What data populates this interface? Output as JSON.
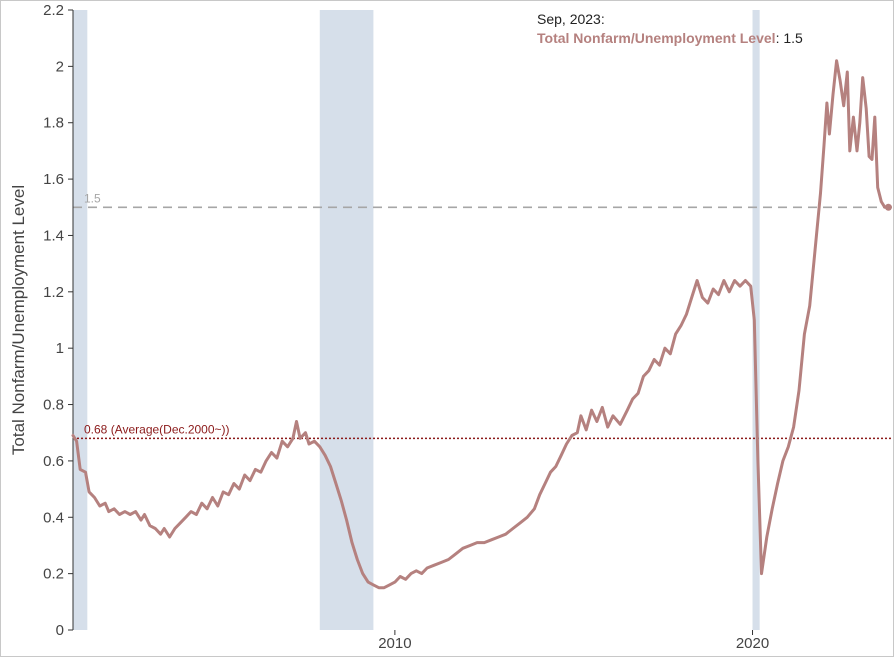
{
  "chart_data": {
    "type": "line",
    "ylabel": "Total Nonfarm/Unemployment Level",
    "xlim": [
      2001.0,
      2023.9
    ],
    "ylim": [
      0,
      2.2
    ],
    "y_ticks": [
      "0",
      "0.2",
      "0.4",
      "0.6",
      "0.8",
      "1",
      "1.2",
      "1.4",
      "1.6",
      "1.8",
      "2",
      "2.2"
    ],
    "x_ticks": [
      {
        "label": "2010",
        "value": 2010.0
      },
      {
        "label": "2020",
        "value": 2020.0
      }
    ],
    "recessions": [
      [
        2001.0,
        2001.4
      ],
      [
        2007.9,
        2009.4
      ],
      [
        2020.0,
        2020.2
      ]
    ],
    "series": [
      {
        "name": "Total Nonfarm/Unemployment Level",
        "color": "#b5817f",
        "points": [
          [
            2001.0,
            0.69
          ],
          [
            2001.1,
            0.67
          ],
          [
            2001.2,
            0.57
          ],
          [
            2001.35,
            0.56
          ],
          [
            2001.45,
            0.49
          ],
          [
            2001.6,
            0.47
          ],
          [
            2001.75,
            0.44
          ],
          [
            2001.9,
            0.45
          ],
          [
            2002.0,
            0.42
          ],
          [
            2002.15,
            0.43
          ],
          [
            2002.3,
            0.41
          ],
          [
            2002.45,
            0.42
          ],
          [
            2002.6,
            0.41
          ],
          [
            2002.75,
            0.42
          ],
          [
            2002.9,
            0.39
          ],
          [
            2003.0,
            0.41
          ],
          [
            2003.15,
            0.37
          ],
          [
            2003.3,
            0.36
          ],
          [
            2003.45,
            0.34
          ],
          [
            2003.55,
            0.36
          ],
          [
            2003.7,
            0.33
          ],
          [
            2003.85,
            0.36
          ],
          [
            2004.0,
            0.38
          ],
          [
            2004.15,
            0.4
          ],
          [
            2004.3,
            0.42
          ],
          [
            2004.45,
            0.41
          ],
          [
            2004.6,
            0.45
          ],
          [
            2004.75,
            0.43
          ],
          [
            2004.9,
            0.47
          ],
          [
            2005.05,
            0.44
          ],
          [
            2005.2,
            0.49
          ],
          [
            2005.35,
            0.48
          ],
          [
            2005.5,
            0.52
          ],
          [
            2005.65,
            0.5
          ],
          [
            2005.8,
            0.55
          ],
          [
            2005.95,
            0.53
          ],
          [
            2006.1,
            0.57
          ],
          [
            2006.25,
            0.56
          ],
          [
            2006.4,
            0.6
          ],
          [
            2006.55,
            0.63
          ],
          [
            2006.7,
            0.61
          ],
          [
            2006.85,
            0.67
          ],
          [
            2007.0,
            0.65
          ],
          [
            2007.15,
            0.68
          ],
          [
            2007.25,
            0.74
          ],
          [
            2007.35,
            0.68
          ],
          [
            2007.5,
            0.7
          ],
          [
            2007.6,
            0.66
          ],
          [
            2007.75,
            0.67
          ],
          [
            2007.9,
            0.65
          ],
          [
            2008.05,
            0.62
          ],
          [
            2008.2,
            0.58
          ],
          [
            2008.35,
            0.52
          ],
          [
            2008.5,
            0.46
          ],
          [
            2008.65,
            0.39
          ],
          [
            2008.8,
            0.31
          ],
          [
            2008.95,
            0.25
          ],
          [
            2009.1,
            0.2
          ],
          [
            2009.25,
            0.17
          ],
          [
            2009.4,
            0.16
          ],
          [
            2009.55,
            0.15
          ],
          [
            2009.7,
            0.15
          ],
          [
            2009.85,
            0.16
          ],
          [
            2010.0,
            0.17
          ],
          [
            2010.15,
            0.19
          ],
          [
            2010.3,
            0.18
          ],
          [
            2010.45,
            0.2
          ],
          [
            2010.6,
            0.21
          ],
          [
            2010.75,
            0.2
          ],
          [
            2010.9,
            0.22
          ],
          [
            2011.1,
            0.23
          ],
          [
            2011.3,
            0.24
          ],
          [
            2011.5,
            0.25
          ],
          [
            2011.7,
            0.27
          ],
          [
            2011.9,
            0.29
          ],
          [
            2012.1,
            0.3
          ],
          [
            2012.3,
            0.31
          ],
          [
            2012.5,
            0.31
          ],
          [
            2012.7,
            0.32
          ],
          [
            2012.9,
            0.33
          ],
          [
            2013.1,
            0.34
          ],
          [
            2013.3,
            0.36
          ],
          [
            2013.5,
            0.38
          ],
          [
            2013.7,
            0.4
          ],
          [
            2013.9,
            0.43
          ],
          [
            2014.05,
            0.48
          ],
          [
            2014.2,
            0.52
          ],
          [
            2014.35,
            0.56
          ],
          [
            2014.5,
            0.58
          ],
          [
            2014.65,
            0.62
          ],
          [
            2014.8,
            0.66
          ],
          [
            2014.95,
            0.69
          ],
          [
            2015.1,
            0.7
          ],
          [
            2015.2,
            0.76
          ],
          [
            2015.35,
            0.71
          ],
          [
            2015.5,
            0.78
          ],
          [
            2015.65,
            0.74
          ],
          [
            2015.8,
            0.79
          ],
          [
            2015.95,
            0.72
          ],
          [
            2016.1,
            0.76
          ],
          [
            2016.3,
            0.73
          ],
          [
            2016.5,
            0.78
          ],
          [
            2016.65,
            0.82
          ],
          [
            2016.8,
            0.84
          ],
          [
            2016.95,
            0.9
          ],
          [
            2017.1,
            0.92
          ],
          [
            2017.25,
            0.96
          ],
          [
            2017.4,
            0.94
          ],
          [
            2017.55,
            1.0
          ],
          [
            2017.7,
            0.98
          ],
          [
            2017.85,
            1.05
          ],
          [
            2018.0,
            1.08
          ],
          [
            2018.15,
            1.12
          ],
          [
            2018.3,
            1.18
          ],
          [
            2018.45,
            1.24
          ],
          [
            2018.6,
            1.18
          ],
          [
            2018.75,
            1.16
          ],
          [
            2018.9,
            1.21
          ],
          [
            2019.05,
            1.19
          ],
          [
            2019.2,
            1.24
          ],
          [
            2019.35,
            1.2
          ],
          [
            2019.5,
            1.24
          ],
          [
            2019.65,
            1.22
          ],
          [
            2019.8,
            1.24
          ],
          [
            2019.95,
            1.22
          ],
          [
            2020.05,
            1.1
          ],
          [
            2020.15,
            0.6
          ],
          [
            2020.25,
            0.2
          ],
          [
            2020.4,
            0.33
          ],
          [
            2020.55,
            0.43
          ],
          [
            2020.7,
            0.52
          ],
          [
            2020.85,
            0.6
          ],
          [
            2021.0,
            0.65
          ],
          [
            2021.15,
            0.72
          ],
          [
            2021.3,
            0.85
          ],
          [
            2021.45,
            1.05
          ],
          [
            2021.6,
            1.15
          ],
          [
            2021.75,
            1.35
          ],
          [
            2021.9,
            1.55
          ],
          [
            2022.0,
            1.72
          ],
          [
            2022.08,
            1.87
          ],
          [
            2022.15,
            1.76
          ],
          [
            2022.25,
            1.9
          ],
          [
            2022.35,
            2.02
          ],
          [
            2022.45,
            1.95
          ],
          [
            2022.55,
            1.86
          ],
          [
            2022.65,
            1.98
          ],
          [
            2022.72,
            1.7
          ],
          [
            2022.82,
            1.82
          ],
          [
            2022.92,
            1.7
          ],
          [
            2023.0,
            1.8
          ],
          [
            2023.08,
            1.96
          ],
          [
            2023.18,
            1.85
          ],
          [
            2023.26,
            1.68
          ],
          [
            2023.34,
            1.67
          ],
          [
            2023.42,
            1.82
          ],
          [
            2023.5,
            1.57
          ],
          [
            2023.6,
            1.52
          ],
          [
            2023.7,
            1.5
          ],
          [
            2023.8,
            1.5
          ]
        ]
      }
    ],
    "reference_lines": [
      {
        "label": "1.5",
        "value": 1.5,
        "style": "dashed",
        "color": "#a6a6a6"
      },
      {
        "label": "0.68 (Average(Dec.2000~))",
        "value": 0.68,
        "style": "dotted",
        "color": "#8b1a1a"
      }
    ],
    "tooltip": {
      "date": "Sep, 2023:",
      "series_label": "Total Nonfarm/Unemployment Level",
      "value": "1.5"
    }
  }
}
